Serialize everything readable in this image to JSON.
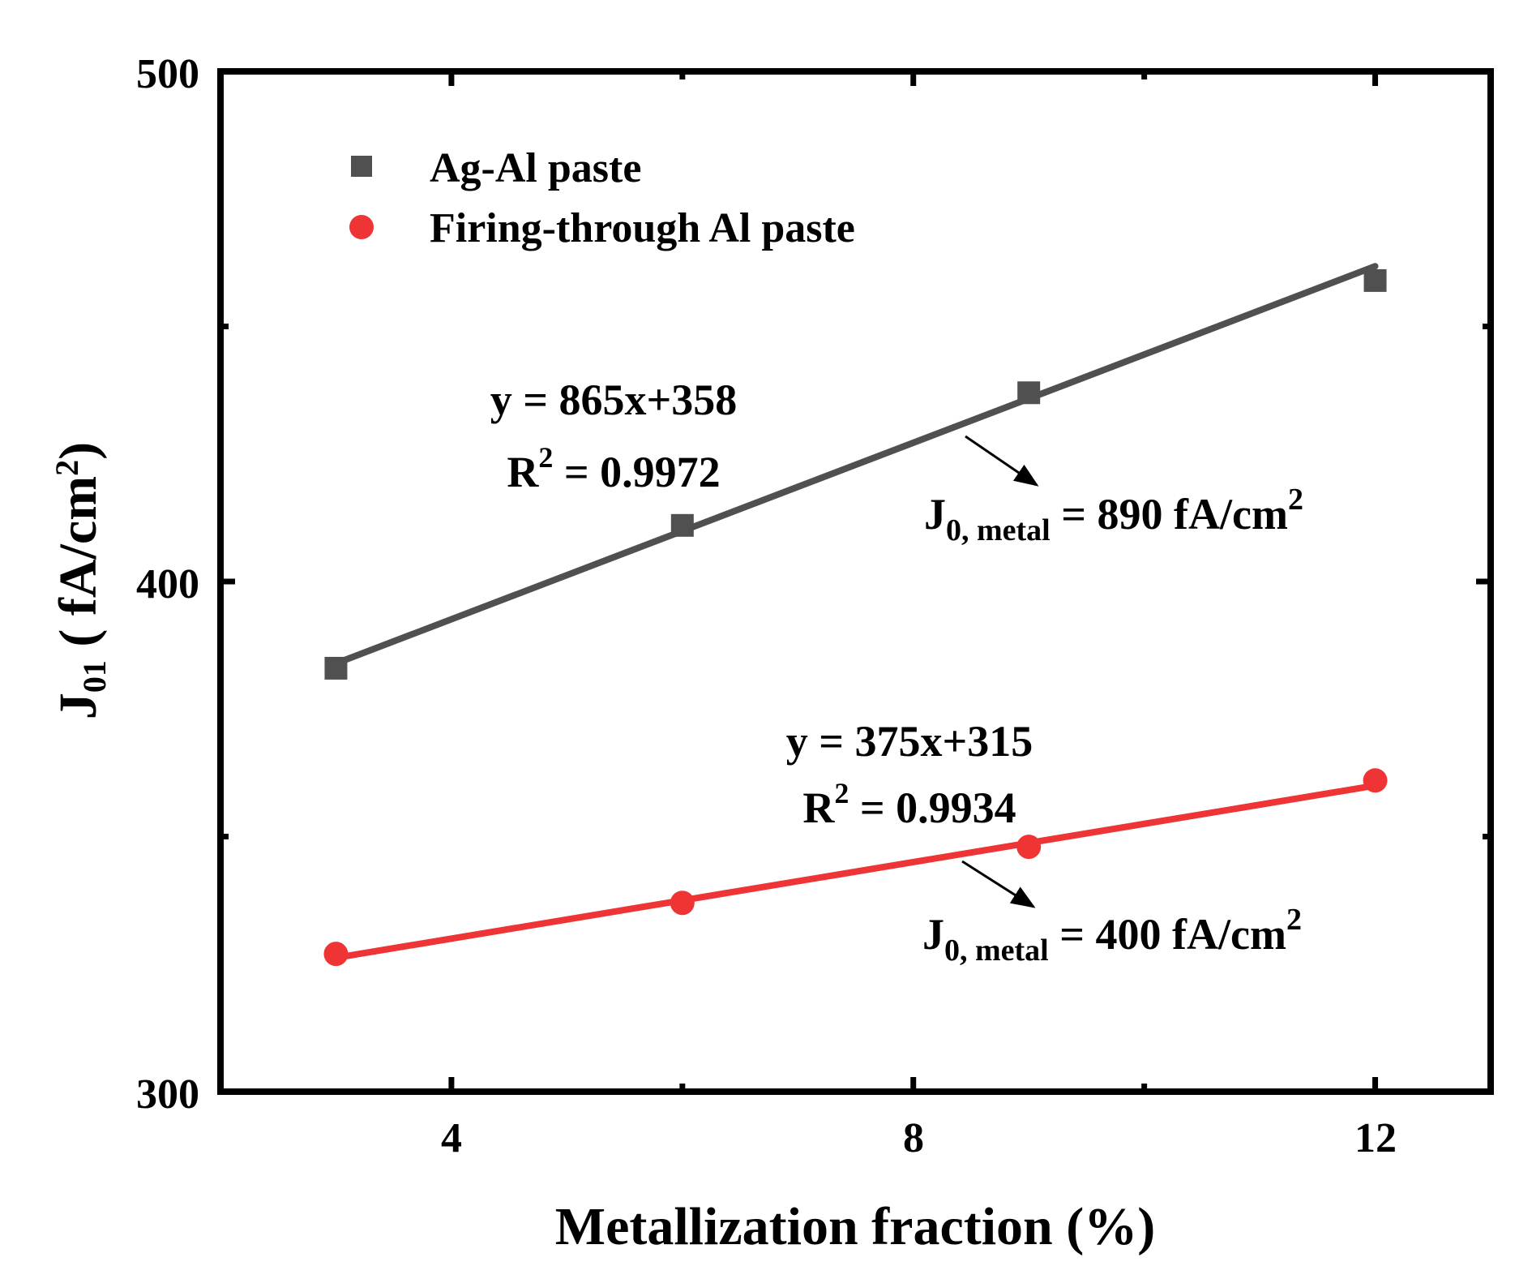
{
  "chart_data": {
    "type": "scatter",
    "xlabel": "Metallization fraction (%)",
    "ylabel_main": "J",
    "ylabel_sub": "01",
    "ylabel_rest": " ( fA/cm",
    "ylabel_sup": "2",
    "ylabel_close": ")",
    "xlim": [
      2,
      13
    ],
    "ylim": [
      300,
      500
    ],
    "xticks": [
      4,
      8,
      12
    ],
    "xtick_labels": [
      "4",
      "8",
      "12"
    ],
    "yticks": [
      300,
      400,
      500
    ],
    "ytick_labels": [
      "300",
      "400",
      "500"
    ],
    "legend_position": "top-left",
    "series": [
      {
        "name": "Ag-Al paste",
        "marker": "square",
        "color": "#505050",
        "x": [
          3,
          6,
          9,
          12
        ],
        "y": [
          383,
          411,
          437,
          459
        ],
        "fit": {
          "slope": 8.65,
          "intercept": 358,
          "x_range": [
            3,
            12
          ]
        },
        "equation": "y = 865x+358",
        "r2_prefix": "R",
        "r2_sup": "2",
        "r2_value": " = 0.9972",
        "j0_main": "J",
        "j0_sub": "0, metal",
        "j0_value": " = 890 fA/cm",
        "j0_sup": "2"
      },
      {
        "name": "Firing-through Al paste",
        "marker": "circle",
        "color": "#EE3434",
        "x": [
          3,
          6,
          9,
          12
        ],
        "y": [
          327,
          337,
          348,
          361
        ],
        "fit": {
          "slope": 3.75,
          "intercept": 315,
          "x_range": [
            3,
            12
          ]
        },
        "equation": "y = 375x+315",
        "r2_prefix": "R",
        "r2_sup": "2",
        "r2_value": " = 0.9934",
        "j0_main": "J",
        "j0_sub": "0, metal",
        "j0_value": " = 400 fA/cm",
        "j0_sup": "2"
      }
    ]
  }
}
